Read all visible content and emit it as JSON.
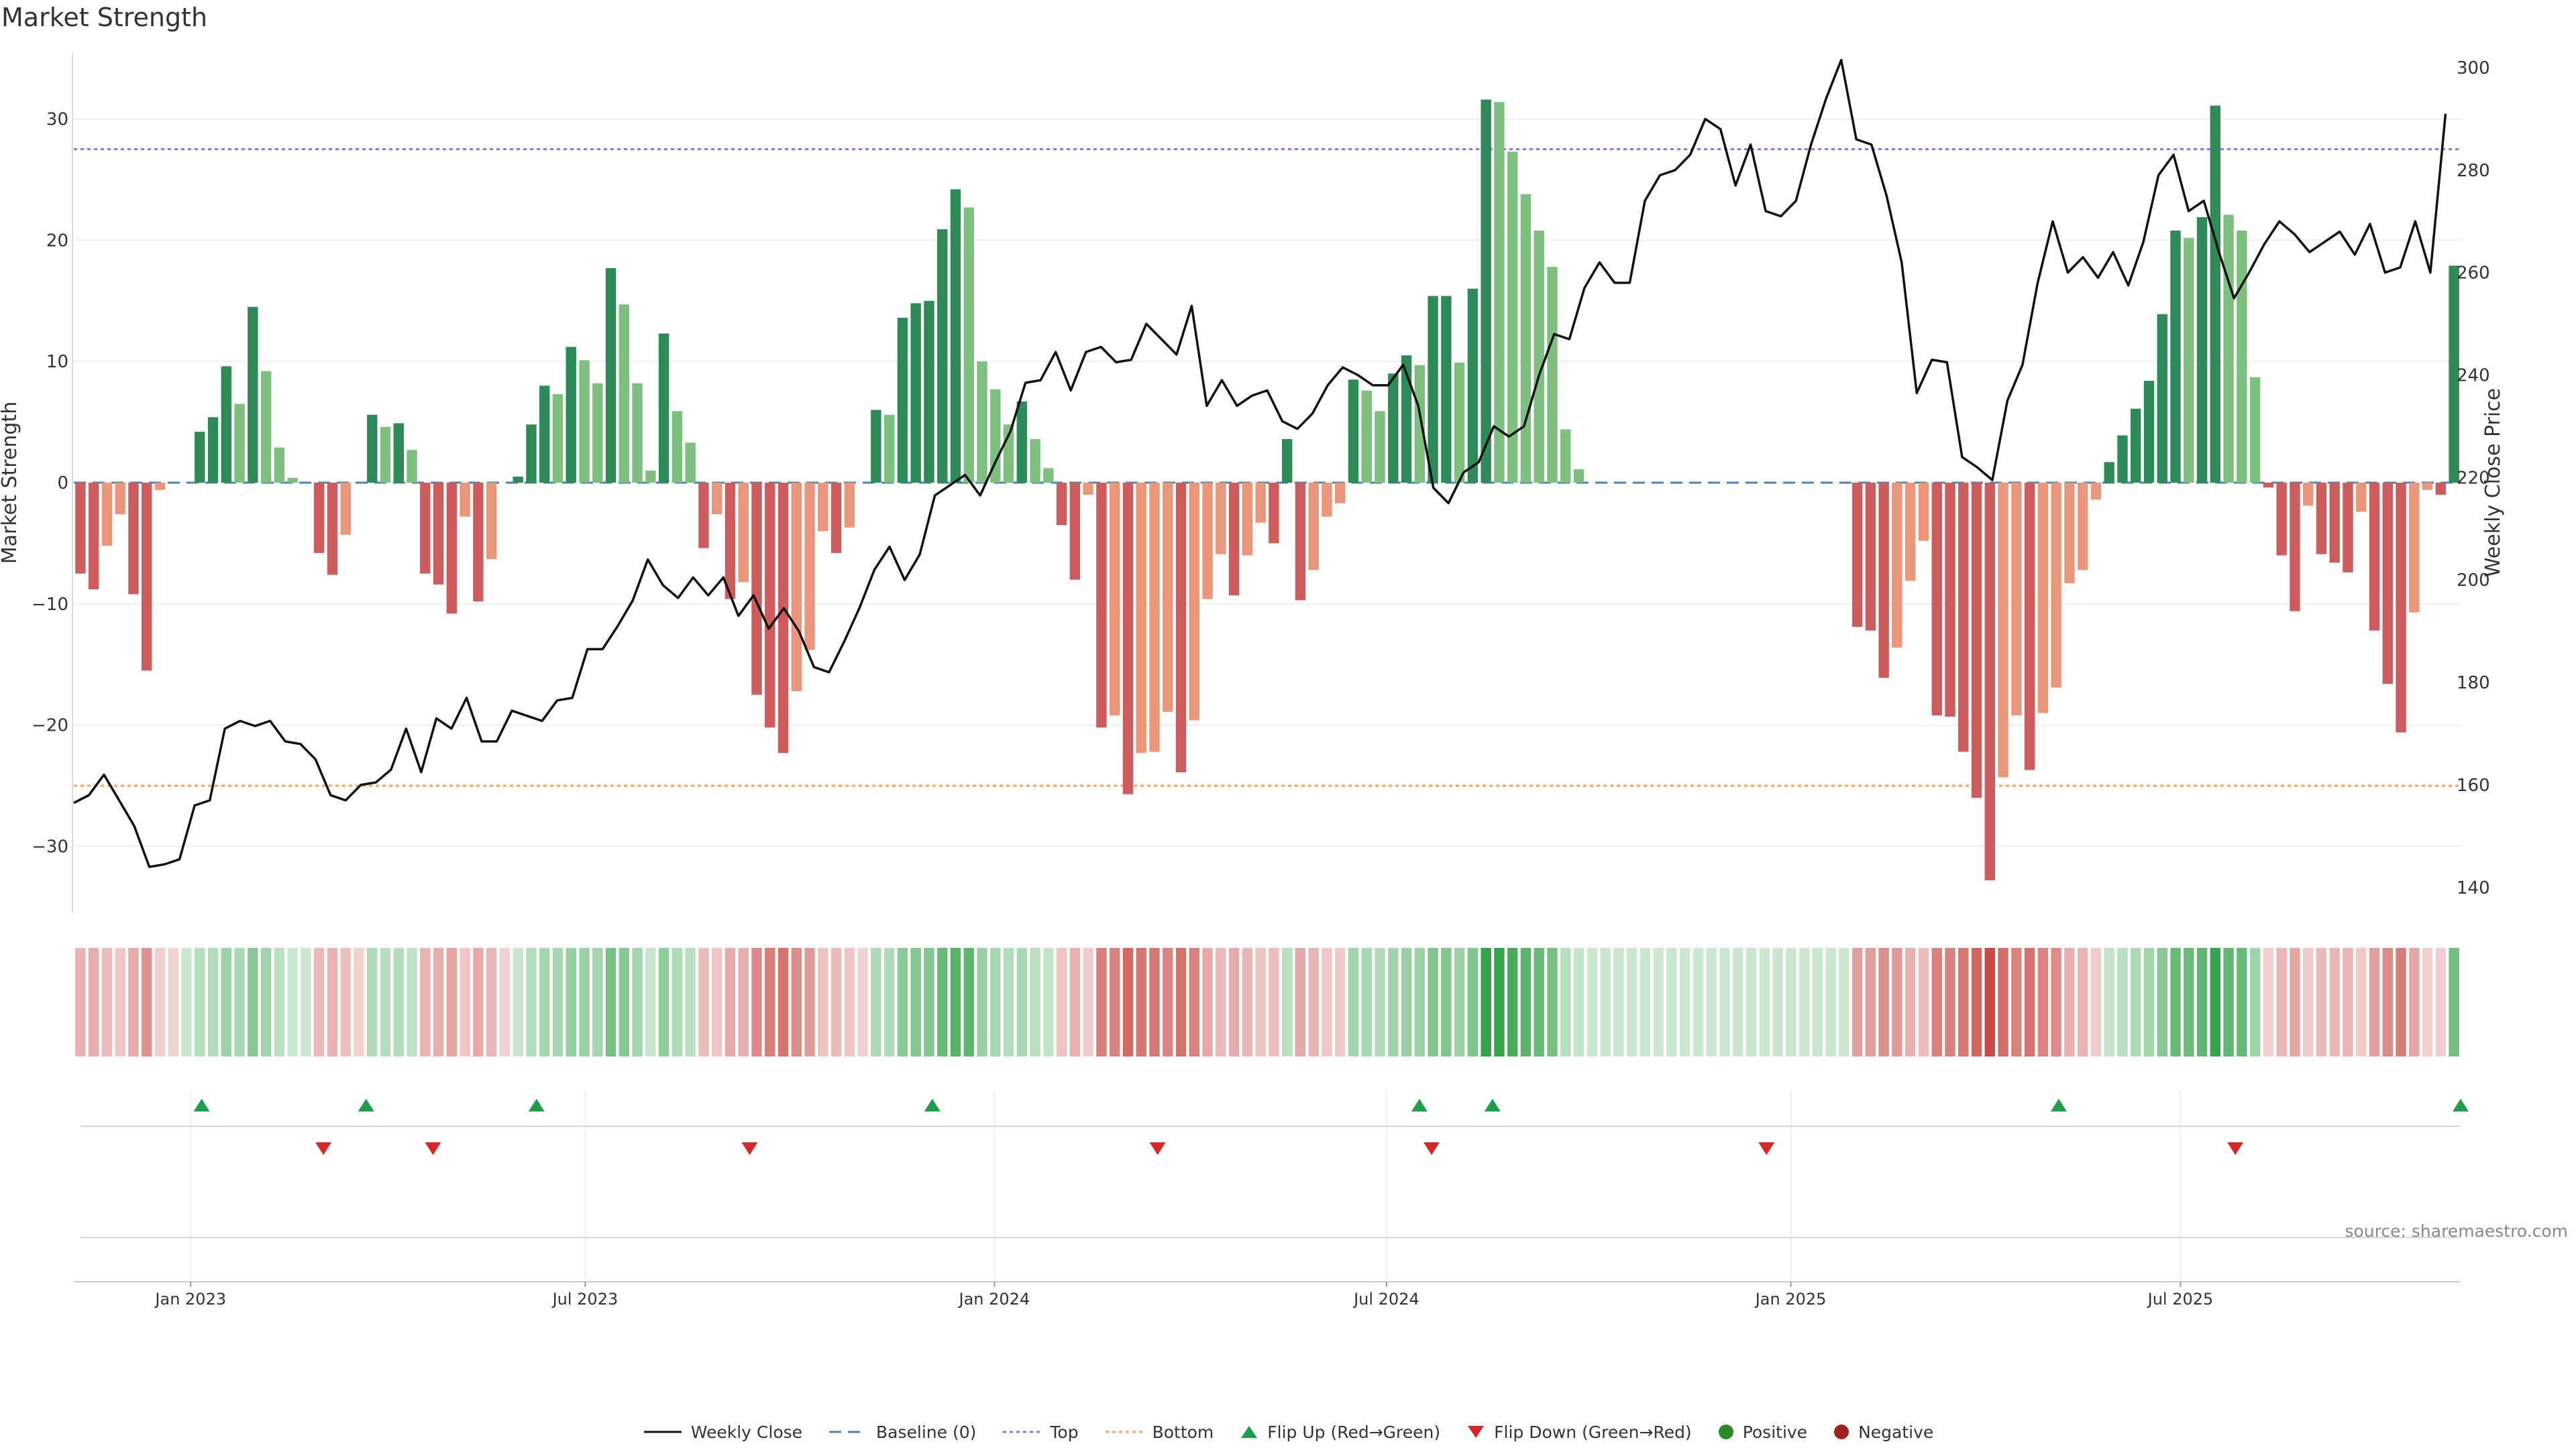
{
  "title": "Market Strength",
  "source_note": "source: sharemaestro.com",
  "legend": {
    "weekly_close": "Weekly Close",
    "baseline": "Baseline (0)",
    "top": "Top",
    "bottom": "Bottom",
    "flip_up": "Flip Up (Red→Green)",
    "flip_down": "Flip Down (Green→Red)",
    "positive": "Positive",
    "negative": "Negative"
  },
  "colors": {
    "pos_dark": "#2e8b57",
    "pos_light": "#7fbf7f",
    "neg_dark": "#cd5c5c",
    "neg_light": "#e9967a",
    "line": "#111111",
    "top_line": "#9370db",
    "bottom_line": "#f4a460",
    "baseline": "#4682b4",
    "flip_up": "#1e9e4a",
    "flip_down": "#d62728",
    "legend_positive": "#2a8a2a",
    "legend_negative": "#a32020"
  },
  "chart_data": {
    "type": "bar",
    "title": "Market Strength",
    "ylabel": "Market Strength",
    "y2label": "Weekly Close Price",
    "ylim": [
      -35.5,
      35.5
    ],
    "y2lim": [
      135,
      303
    ],
    "yticks": [
      "30",
      "20",
      "10",
      "0",
      "−10",
      "−20",
      "−30"
    ],
    "yticks_values": [
      30,
      20,
      10,
      0,
      -10,
      -20,
      -30
    ],
    "y2ticks": [
      "300",
      "280",
      "260",
      "240",
      "220",
      "200",
      "180",
      "160",
      "140"
    ],
    "y2ticks_values": [
      300,
      280,
      260,
      240,
      220,
      200,
      180,
      160,
      140
    ],
    "top_level": 27.5,
    "bottom_level": -25,
    "x_range_weeks": [
      0,
      196
    ],
    "xticks": [
      {
        "label": "Jan 2023",
        "week": 9.6
      },
      {
        "label": "Jul 2023",
        "week": 42
      },
      {
        "label": "Jan 2024",
        "week": 75.6
      },
      {
        "label": "Jul 2024",
        "week": 107.8
      },
      {
        "label": "Jan 2025",
        "week": 141
      },
      {
        "label": "Jul 2025",
        "week": 173
      }
    ],
    "strength": [
      -7.5,
      -8.8,
      -5.2,
      -2.6,
      -9.2,
      -15.5,
      -0.6,
      0,
      0,
      4.2,
      5.4,
      9.6,
      6.5,
      14.5,
      9.2,
      2.9,
      0.4,
      0,
      -5.8,
      -7.6,
      -4.3,
      0,
      5.6,
      4.6,
      4.9,
      2.7,
      -7.5,
      -8.4,
      -10.8,
      -2.8,
      -9.8,
      -6.3,
      0,
      0.5,
      4.8,
      8.0,
      7.3,
      11.2,
      10.1,
      8.2,
      17.7,
      14.7,
      8.2,
      1.0,
      12.3,
      5.9,
      3.3,
      -5.4,
      -2.6,
      -9.6,
      -8.2,
      -17.5,
      -20.2,
      -22.3,
      -17.2,
      -13.8,
      -4.0,
      -5.8,
      -3.7,
      0,
      6.0,
      5.6,
      13.6,
      14.8,
      15.0,
      20.9,
      24.2,
      22.7,
      10.0,
      7.7,
      4.8,
      6.7,
      3.6,
      1.2,
      -3.5,
      -8.0,
      -1.0,
      -20.2,
      -19.2,
      -25.7,
      -22.3,
      -22.2,
      -18.9,
      -23.9,
      -19.6,
      -9.6,
      -5.9,
      -9.3,
      -6.0,
      -3.3,
      -5.0,
      3.6,
      -9.7,
      -7.2,
      -2.8,
      -1.7,
      8.5,
      7.6,
      5.9,
      9.0,
      10.5,
      9.7,
      15.4,
      15.4,
      9.9,
      16.0,
      31.6,
      31.4,
      27.3,
      23.8,
      20.8,
      17.8,
      4.4,
      1.1,
      0,
      0,
      0,
      0,
      0,
      0,
      0,
      0,
      0,
      0,
      0,
      0,
      0,
      0,
      0,
      0,
      0,
      0,
      0,
      0,
      -11.9,
      -12.2,
      -16.1,
      -13.6,
      -8.1,
      -4.8,
      -19.2,
      -19.3,
      -22.2,
      -26.0,
      -32.8,
      -24.3,
      -19.2,
      -23.7,
      -19.0,
      -16.9,
      -8.3,
      -7.2,
      -1.4,
      1.7,
      3.9,
      6.1,
      8.4,
      13.9,
      20.8,
      20.2,
      21.9,
      31.1,
      22.1,
      20.8,
      8.7,
      -0.4,
      -6.0,
      -10.6,
      -1.9,
      -5.9,
      -6.6,
      -7.4,
      -2.4,
      -12.2,
      -16.6,
      -20.6,
      -10.7,
      -0.6,
      -1.0,
      17.9
    ],
    "weekly_close": [
      {
        "w": 0,
        "v": 156.5
      },
      {
        "w": 1,
        "v": 158
      },
      {
        "w": 2,
        "v": 162
      },
      {
        "w": 3,
        "v": 157
      },
      {
        "w": 4,
        "v": 152
      },
      {
        "w": 5,
        "v": 144
      },
      {
        "w": 6,
        "v": 144.5
      },
      {
        "w": 7,
        "v": 145.5
      },
      {
        "w": 8,
        "v": 156
      },
      {
        "w": 9,
        "v": 157
      },
      {
        "w": 10,
        "v": 171
      },
      {
        "w": 11,
        "v": 172.5
      },
      {
        "w": 12,
        "v": 171.5
      },
      {
        "w": 13,
        "v": 172.5
      },
      {
        "w": 14,
        "v": 168.5
      },
      {
        "w": 15,
        "v": 168
      },
      {
        "w": 16,
        "v": 165
      },
      {
        "w": 17,
        "v": 158
      },
      {
        "w": 18,
        "v": 157
      },
      {
        "w": 19,
        "v": 160
      },
      {
        "w": 20,
        "v": 160.5
      },
      {
        "w": 21,
        "v": 163
      },
      {
        "w": 22,
        "v": 171
      },
      {
        "w": 23,
        "v": 162.5
      },
      {
        "w": 24,
        "v": 173
      },
      {
        "w": 25,
        "v": 171
      },
      {
        "w": 26,
        "v": 177
      },
      {
        "w": 27,
        "v": 168.5
      },
      {
        "w": 28,
        "v": 168.5
      },
      {
        "w": 29,
        "v": 174.5
      },
      {
        "w": 30,
        "v": 173.5
      },
      {
        "w": 31,
        "v": 172.5
      },
      {
        "w": 32,
        "v": 176.5
      },
      {
        "w": 33,
        "v": 177
      },
      {
        "w": 34,
        "v": 186.5
      },
      {
        "w": 35,
        "v": 186.5
      },
      {
        "w": 36,
        "v": 191
      },
      {
        "w": 37,
        "v": 196
      },
      {
        "w": 38,
        "v": 204
      },
      {
        "w": 39,
        "v": 199
      },
      {
        "w": 40,
        "v": 196.5
      },
      {
        "w": 41,
        "v": 200.5
      },
      {
        "w": 42,
        "v": 197
      },
      {
        "w": 43,
        "v": 200.5
      },
      {
        "w": 44,
        "v": 193
      },
      {
        "w": 45,
        "v": 197
      },
      {
        "w": 46,
        "v": 190.5
      },
      {
        "w": 47,
        "v": 194.5
      },
      {
        "w": 48,
        "v": 190
      },
      {
        "w": 49,
        "v": 183
      },
      {
        "w": 50,
        "v": 182
      },
      {
        "w": 51,
        "v": 188
      },
      {
        "w": 52,
        "v": 194.5
      },
      {
        "w": 53,
        "v": 202
      },
      {
        "w": 54,
        "v": 206.5
      },
      {
        "w": 55,
        "v": 200
      },
      {
        "w": 56,
        "v": 205
      },
      {
        "w": 57,
        "v": 216.5
      },
      {
        "w": 58,
        "v": 218.5
      },
      {
        "w": 59,
        "v": 220.5
      },
      {
        "w": 60,
        "v": 216.5
      },
      {
        "w": 61,
        "v": 223
      },
      {
        "w": 62,
        "v": 229
      },
      {
        "w": 63,
        "v": 238.5
      },
      {
        "w": 64,
        "v": 239
      },
      {
        "w": 65,
        "v": 244.5
      },
      {
        "w": 66,
        "v": 237
      },
      {
        "w": 67,
        "v": 244.5
      },
      {
        "w": 68,
        "v": 245.5
      },
      {
        "w": 69,
        "v": 242.5
      },
      {
        "w": 70,
        "v": 243
      },
      {
        "w": 71,
        "v": 250
      },
      {
        "w": 72,
        "v": 247
      },
      {
        "w": 73,
        "v": 244
      },
      {
        "w": 74,
        "v": 253.5
      },
      {
        "w": 75,
        "v": 234
      },
      {
        "w": 76,
        "v": 239
      },
      {
        "w": 77,
        "v": 234
      },
      {
        "w": 78,
        "v": 236
      },
      {
        "w": 79,
        "v": 237
      },
      {
        "w": 80,
        "v": 231
      },
      {
        "w": 81,
        "v": 229.5
      },
      {
        "w": 82,
        "v": 232.5
      },
      {
        "w": 83,
        "v": 238
      },
      {
        "w": 84,
        "v": 241.5
      },
      {
        "w": 85,
        "v": 240
      },
      {
        "w": 86,
        "v": 238
      },
      {
        "w": 87,
        "v": 238
      },
      {
        "w": 88,
        "v": 242
      },
      {
        "w": 89,
        "v": 234
      },
      {
        "w": 90,
        "v": 218
      },
      {
        "w": 91,
        "v": 215
      },
      {
        "w": 92,
        "v": 221
      },
      {
        "w": 93,
        "v": 223
      },
      {
        "w": 94,
        "v": 230
      },
      {
        "w": 95,
        "v": 228
      },
      {
        "w": 96,
        "v": 230
      },
      {
        "w": 97,
        "v": 240
      },
      {
        "w": 98,
        "v": 248
      },
      {
        "w": 99,
        "v": 247
      },
      {
        "w": 100,
        "v": 257
      },
      {
        "w": 101,
        "v": 262
      },
      {
        "w": 102,
        "v": 258
      },
      {
        "w": 103,
        "v": 258
      },
      {
        "w": 104,
        "v": 274
      },
      {
        "w": 105,
        "v": 279
      },
      {
        "w": 106,
        "v": 280
      },
      {
        "w": 107,
        "v": 283
      },
      {
        "w": 108,
        "v": 290
      },
      {
        "w": 109,
        "v": 288
      },
      {
        "w": 110,
        "v": 277
      },
      {
        "w": 111,
        "v": 285
      },
      {
        "w": 112,
        "v": 272
      },
      {
        "w": 113,
        "v": 271
      },
      {
        "w": 114,
        "v": 274
      },
      {
        "w": 115,
        "v": 285
      },
      {
        "w": 116,
        "v": 294
      },
      {
        "w": 117,
        "v": 301.5
      },
      {
        "w": 118,
        "v": 286
      },
      {
        "w": 119,
        "v": 285
      },
      {
        "w": 120,
        "v": 275
      },
      {
        "w": 121,
        "v": 262
      },
      {
        "w": 122,
        "v": 236.5
      },
      {
        "w": 123,
        "v": 243
      },
      {
        "w": 124,
        "v": 242.5
      },
      {
        "w": 125,
        "v": 224
      },
      {
        "w": 126,
        "v": 222
      },
      {
        "w": 127,
        "v": 219.5
      },
      {
        "w": 128,
        "v": 235
      },
      {
        "w": 129,
        "v": 242
      },
      {
        "w": 130,
        "v": 258
      },
      {
        "w": 131,
        "v": 270
      },
      {
        "w": 132,
        "v": 260
      },
      {
        "w": 133,
        "v": 263
      },
      {
        "w": 134,
        "v": 259
      },
      {
        "w": 135,
        "v": 264
      },
      {
        "w": 136,
        "v": 257.5
      },
      {
        "w": 137,
        "v": 266
      },
      {
        "w": 138,
        "v": 279
      },
      {
        "w": 139,
        "v": 283
      },
      {
        "w": 140,
        "v": 272
      },
      {
        "w": 141,
        "v": 274
      },
      {
        "w": 142,
        "v": 264
      },
      {
        "w": 143,
        "v": 255
      },
      {
        "w": 144,
        "v": 260
      },
      {
        "w": 145,
        "v": 265.5
      },
      {
        "w": 146,
        "v": 270
      },
      {
        "w": 147,
        "v": 267.5
      },
      {
        "w": 148,
        "v": 264
      },
      {
        "w": 149,
        "v": 266
      },
      {
        "w": 150,
        "v": 268
      },
      {
        "w": 151,
        "v": 263.5
      },
      {
        "w": 152,
        "v": 269.5
      },
      {
        "w": 153,
        "v": 260
      },
      {
        "w": 154,
        "v": 261
      },
      {
        "w": 155,
        "v": 270
      },
      {
        "w": 156,
        "v": 260
      },
      {
        "w": 157,
        "v": 291
      }
    ],
    "weekly_close_x_scale": 1.2405,
    "flip_up_weeks": [
      10.5,
      24,
      38,
      70.5,
      110.5,
      116.5,
      163,
      196
    ],
    "flip_down_weeks": [
      20.5,
      29.5,
      55.5,
      89,
      111.5,
      139,
      177.5
    ]
  }
}
